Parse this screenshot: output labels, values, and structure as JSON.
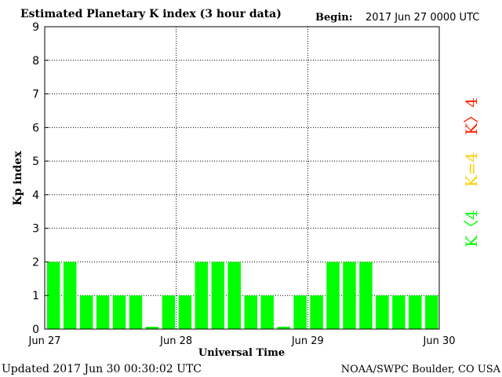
{
  "header": {
    "title": "Estimated Planetary K index (3 hour data)",
    "begin_label": "Begin:",
    "begin_value": "2017 Jun 27 0000 UTC"
  },
  "footer": {
    "updated": "Updated 2017 Jun 30 00:30:02 UTC",
    "credit": "NOAA/SWPC Boulder, CO USA"
  },
  "legend": {
    "high": "K〉4",
    "equal": "K=4",
    "low": "K〈4"
  },
  "colors": {
    "bar": "#00ff00",
    "high": "#ff2200",
    "equal": "#ffcc00",
    "low": "#00ff00"
  },
  "chart_data": {
    "type": "bar",
    "title": "Estimated Planetary K index (3 hour data)",
    "xlabel": "Universal Time",
    "ylabel": "Kp index",
    "ylim": [
      0,
      9
    ],
    "yticks": [
      "0",
      "1",
      "2",
      "3",
      "4",
      "5",
      "6",
      "7",
      "8",
      "9"
    ],
    "xticks": [
      "Jun 27",
      "Jun 28",
      "Jun 29",
      "Jun 30"
    ],
    "grid": true,
    "values": [
      2,
      2,
      1,
      1,
      1,
      1,
      0.07,
      1,
      1,
      2,
      2,
      2,
      1,
      1,
      0.07,
      1,
      1,
      2,
      2,
      2,
      1,
      1,
      1,
      1
    ]
  }
}
